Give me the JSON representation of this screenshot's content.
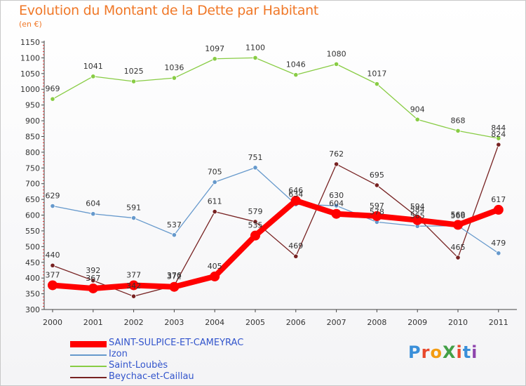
{
  "header": {
    "title": "Evolution du Montant de la Dette par Habitant",
    "subtitle": "(en €)"
  },
  "logo": {
    "text": "ProXiti",
    "colors": [
      "#3a8fd9",
      "#e8482c",
      "#f39c12",
      "#43a047",
      "#e8482c",
      "#3a8fd9",
      "#8e44ad"
    ]
  },
  "chart_data": {
    "type": "line",
    "title": "Evolution du Montant de la Dette par Habitant",
    "subtitle": "(en €)",
    "xlabel": "",
    "ylabel": "",
    "x": [
      "2000",
      "2001",
      "2002",
      "2003",
      "2004",
      "2005",
      "2006",
      "2007",
      "2008",
      "2009",
      "2010",
      "2011"
    ],
    "ylim": [
      300,
      1150
    ],
    "yticks": [
      300,
      350,
      400,
      450,
      500,
      550,
      600,
      650,
      700,
      750,
      800,
      850,
      900,
      950,
      1000,
      1050,
      1100,
      1150
    ],
    "grid": false,
    "legend_position": "bottom-left",
    "series": [
      {
        "name": "SAINT-SULPICE-ET-CAMEYRAC",
        "color": "#ff0000",
        "emphasis": true,
        "values": [
          377,
          367,
          377,
          372,
          405,
          535,
          646,
          604,
          597,
          584,
          569,
          617
        ]
      },
      {
        "name": "Izon",
        "color": "#6699cc",
        "values": [
          629,
          604,
          591,
          537,
          705,
          751,
          634,
          630,
          578,
          565,
          566,
          479
        ]
      },
      {
        "name": "Saint-Loubès",
        "color": "#88cc44",
        "values": [
          969,
          1041,
          1025,
          1036,
          1097,
          1100,
          1046,
          1080,
          1017,
          904,
          868,
          844
        ]
      },
      {
        "name": "Beychac-et-Caillau",
        "color": "#772222",
        "values": [
          440,
          392,
          342,
          376,
          611,
          579,
          469,
          762,
          695,
          594,
          465,
          824
        ]
      }
    ]
  }
}
